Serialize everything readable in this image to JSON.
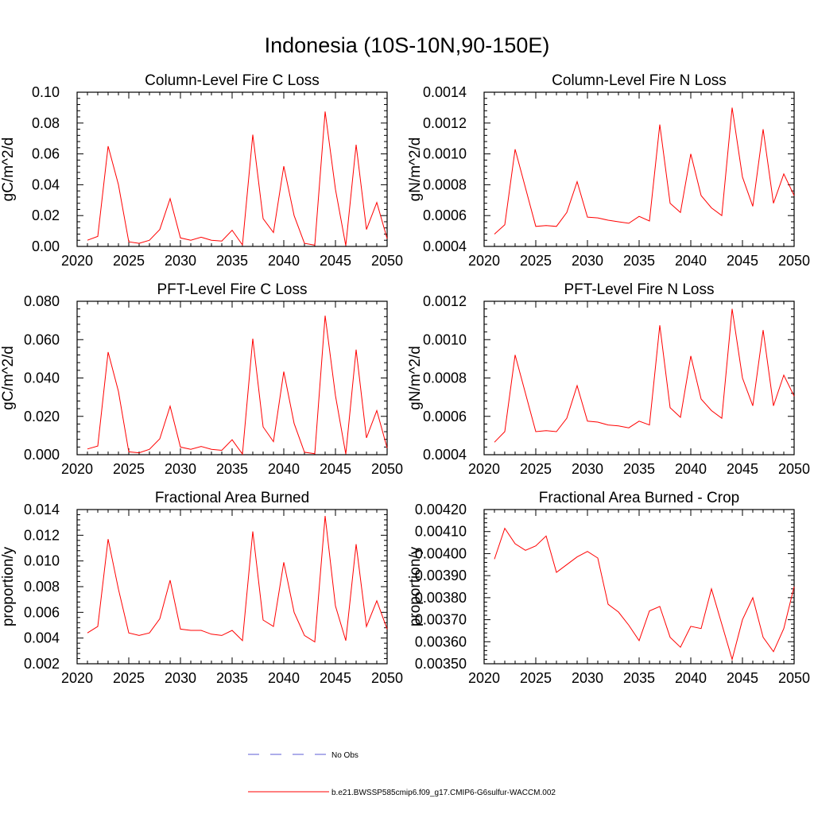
{
  "figure": {
    "title": "Indonesia (10S-10N,90-150E)",
    "legend": {
      "entries": [
        {
          "label": "No Obs",
          "color": "#5b5bd6",
          "dash": true
        },
        {
          "label": "b.e21.BWSSP585cmip6.f09_g17.CMIP6-G6sulfur-WACCM.002",
          "color": "#ff0000",
          "dash": false
        }
      ]
    }
  },
  "chart_data": [
    {
      "type": "line",
      "title": "Column-Level Fire C Loss",
      "ylabel": "gC/m^2/d",
      "xlim": [
        2020,
        2050
      ],
      "ylim": [
        0,
        0.1
      ],
      "xticks": [
        "2020",
        "2025",
        "2030",
        "2035",
        "2040",
        "2045",
        "2050"
      ],
      "yticks": [
        "0.00",
        "0.02",
        "0.04",
        "0.06",
        "0.08",
        "0.10"
      ],
      "series": [
        {
          "color": "#ff0000",
          "x": [
            2021,
            2022,
            2023,
            2024,
            2025,
            2026,
            2027,
            2028,
            2029,
            2030,
            2031,
            2032,
            2033,
            2034,
            2035,
            2036,
            2037,
            2038,
            2039,
            2040,
            2041,
            2042,
            2043,
            2044,
            2045,
            2046,
            2047,
            2048,
            2049,
            2050
          ],
          "values": [
            0.004,
            0.0065,
            0.065,
            0.04,
            0.003,
            0.002,
            0.004,
            0.011,
            0.031,
            0.0055,
            0.004,
            0.006,
            0.004,
            0.0035,
            0.0105,
            0.001,
            0.0725,
            0.018,
            0.009,
            0.052,
            0.02,
            0.002,
            0.0008,
            0.0875,
            0.037,
            0.0005,
            0.066,
            0.011,
            0.0285,
            0.005
          ]
        }
      ]
    },
    {
      "type": "line",
      "title": "Column-Level Fire N Loss",
      "ylabel": "gN/m^2/d",
      "xlim": [
        2020,
        2050
      ],
      "ylim": [
        0.0004,
        0.0014
      ],
      "xticks": [
        "2020",
        "2025",
        "2030",
        "2035",
        "2040",
        "2045",
        "2050"
      ],
      "yticks": [
        "0.0004",
        "0.0006",
        "0.0008",
        "0.0010",
        "0.0012",
        "0.0014"
      ],
      "series": [
        {
          "color": "#ff0000",
          "x": [
            2021,
            2022,
            2023,
            2024,
            2025,
            2026,
            2027,
            2028,
            2029,
            2030,
            2031,
            2032,
            2033,
            2034,
            2035,
            2036,
            2037,
            2038,
            2039,
            2040,
            2041,
            2042,
            2043,
            2044,
            2045,
            2046,
            2047,
            2048,
            2049,
            2050
          ],
          "values": [
            0.00048,
            0.00054,
            0.00103,
            0.00078,
            0.00053,
            0.000535,
            0.00053,
            0.00062,
            0.00082,
            0.00059,
            0.000585,
            0.00057,
            0.00056,
            0.00055,
            0.000595,
            0.000565,
            0.00119,
            0.00068,
            0.00062,
            0.001,
            0.00073,
            0.00065,
            0.0006,
            0.0013,
            0.00085,
            0.00066,
            0.00116,
            0.00068,
            0.00087,
            0.00073
          ]
        }
      ]
    },
    {
      "type": "line",
      "title": "PFT-Level Fire C Loss",
      "ylabel": "gC/m^2/d",
      "xlim": [
        2020,
        2050
      ],
      "ylim": [
        0,
        0.08
      ],
      "xticks": [
        "2020",
        "2025",
        "2030",
        "2035",
        "2040",
        "2045",
        "2050"
      ],
      "yticks": [
        "0.000",
        "0.020",
        "0.040",
        "0.060",
        "0.080"
      ],
      "series": [
        {
          "color": "#ff0000",
          "x": [
            2021,
            2022,
            2023,
            2024,
            2025,
            2026,
            2027,
            2028,
            2029,
            2030,
            2031,
            2032,
            2033,
            2034,
            2035,
            2036,
            2037,
            2038,
            2039,
            2040,
            2041,
            2042,
            2043,
            2044,
            2045,
            2046,
            2047,
            2048,
            2049,
            2050
          ],
          "values": [
            0.003,
            0.0045,
            0.0535,
            0.033,
            0.0015,
            0.001,
            0.0028,
            0.0083,
            0.0253,
            0.004,
            0.0028,
            0.0043,
            0.0028,
            0.0023,
            0.0078,
            0.0003,
            0.0605,
            0.0145,
            0.0068,
            0.0433,
            0.0163,
            0.0013,
            0.0005,
            0.0725,
            0.0308,
            0.0003,
            0.0548,
            0.0088,
            0.023,
            0.0035
          ]
        }
      ]
    },
    {
      "type": "line",
      "title": "PFT-Level Fire N Loss",
      "ylabel": "gN/m^2/d",
      "xlim": [
        2020,
        2050
      ],
      "ylim": [
        0.0004,
        0.0012
      ],
      "xticks": [
        "2020",
        "2025",
        "2030",
        "2035",
        "2040",
        "2045",
        "2050"
      ],
      "yticks": [
        "0.0004",
        "0.0006",
        "0.0008",
        "0.0010",
        "0.0012"
      ],
      "series": [
        {
          "color": "#ff0000",
          "x": [
            2021,
            2022,
            2023,
            2024,
            2025,
            2026,
            2027,
            2028,
            2029,
            2030,
            2031,
            2032,
            2033,
            2034,
            2035,
            2036,
            2037,
            2038,
            2039,
            2040,
            2041,
            2042,
            2043,
            2044,
            2045,
            2046,
            2047,
            2048,
            2049,
            2050
          ],
          "values": [
            0.000465,
            0.00052,
            0.00092,
            0.00072,
            0.00052,
            0.000525,
            0.00052,
            0.00059,
            0.00076,
            0.000575,
            0.00057,
            0.000555,
            0.00055,
            0.00054,
            0.000575,
            0.000555,
            0.001075,
            0.000645,
            0.000595,
            0.000915,
            0.00069,
            0.00063,
            0.00059,
            0.00116,
            0.0008,
            0.000655,
            0.00105,
            0.000655,
            0.000815,
            0.000705
          ]
        }
      ]
    },
    {
      "type": "line",
      "title": "Fractional Area Burned",
      "ylabel": "proportion/y",
      "xlim": [
        2020,
        2050
      ],
      "ylim": [
        0.002,
        0.014
      ],
      "xticks": [
        "2020",
        "2025",
        "2030",
        "2035",
        "2040",
        "2045",
        "2050"
      ],
      "yticks": [
        "0.002",
        "0.004",
        "0.006",
        "0.008",
        "0.010",
        "0.012",
        "0.014"
      ],
      "series": [
        {
          "color": "#ff0000",
          "x": [
            2021,
            2022,
            2023,
            2024,
            2025,
            2026,
            2027,
            2028,
            2029,
            2030,
            2031,
            2032,
            2033,
            2034,
            2035,
            2036,
            2037,
            2038,
            2039,
            2040,
            2041,
            2042,
            2043,
            2044,
            2045,
            2046,
            2047,
            2048,
            2049,
            2050
          ],
          "values": [
            0.0044,
            0.0049,
            0.0117,
            0.0078,
            0.0044,
            0.0042,
            0.0044,
            0.0055,
            0.0085,
            0.0047,
            0.0046,
            0.0046,
            0.0043,
            0.0042,
            0.0046,
            0.0038,
            0.0123,
            0.0054,
            0.0049,
            0.0099,
            0.006,
            0.0042,
            0.0037,
            0.0135,
            0.0065,
            0.0038,
            0.0113,
            0.0049,
            0.0069,
            0.0047
          ]
        }
      ]
    },
    {
      "type": "line",
      "title": "Fractional Area Burned - Crop",
      "ylabel": "proportion/y",
      "xlim": [
        2020,
        2050
      ],
      "ylim": [
        0.0035,
        0.0042
      ],
      "xticks": [
        "2020",
        "2025",
        "2030",
        "2035",
        "2040",
        "2045",
        "2050"
      ],
      "yticks": [
        "0.00350",
        "0.00360",
        "0.00370",
        "0.00380",
        "0.00390",
        "0.00400",
        "0.00410",
        "0.00420"
      ],
      "series": [
        {
          "color": "#ff0000",
          "x": [
            2021,
            2022,
            2023,
            2024,
            2025,
            2026,
            2027,
            2028,
            2029,
            2030,
            2031,
            2032,
            2033,
            2034,
            2035,
            2036,
            2037,
            2038,
            2039,
            2040,
            2041,
            2042,
            2043,
            2044,
            2045,
            2046,
            2047,
            2048,
            2049,
            2050
          ],
          "values": [
            0.003975,
            0.004115,
            0.004045,
            0.004015,
            0.004035,
            0.00408,
            0.003915,
            0.00395,
            0.003985,
            0.00401,
            0.00398,
            0.00377,
            0.003735,
            0.003675,
            0.003605,
            0.00374,
            0.00376,
            0.00362,
            0.003575,
            0.00367,
            0.00366,
            0.00384,
            0.00368,
            0.00352,
            0.0037,
            0.0038,
            0.00362,
            0.003555,
            0.00366,
            0.00385
          ]
        }
      ]
    }
  ]
}
